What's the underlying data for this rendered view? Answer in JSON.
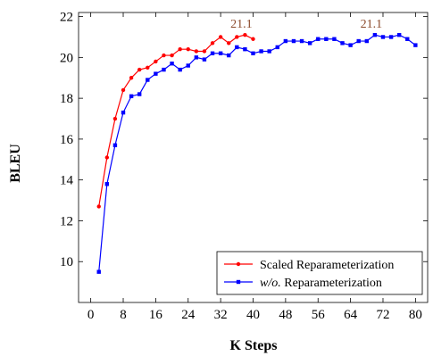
{
  "chart_data": {
    "type": "line",
    "xlabel": "K Steps",
    "ylabel": "BLEU",
    "xlim": [
      -3,
      83
    ],
    "ylim": [
      8,
      22.2
    ],
    "xticks": [
      0,
      8,
      16,
      24,
      32,
      40,
      48,
      56,
      64,
      72,
      80
    ],
    "yticks": [
      10,
      12,
      14,
      16,
      18,
      20,
      22
    ],
    "grid": false,
    "legend_position": "bottom-right",
    "series": [
      {
        "name": "Scaled Reparameterization",
        "color": "#ff0000",
        "marker": "circle",
        "x": [
          2,
          4,
          6,
          8,
          10,
          12,
          14,
          16,
          18,
          20,
          22,
          24,
          26,
          28,
          30,
          32,
          34,
          36,
          38,
          40
        ],
        "y": [
          12.7,
          15.1,
          17.0,
          18.4,
          19.0,
          19.4,
          19.5,
          19.8,
          20.1,
          20.1,
          20.4,
          20.4,
          20.3,
          20.3,
          20.7,
          21.0,
          20.7,
          21.0,
          21.1,
          20.9
        ]
      },
      {
        "name": "w/o. Reparameterization",
        "name_italic": "w/o.",
        "name_rest": " Reparameterization",
        "color": "#0000ff",
        "marker": "square",
        "x": [
          2,
          4,
          6,
          8,
          10,
          12,
          14,
          16,
          18,
          20,
          22,
          24,
          26,
          28,
          30,
          32,
          34,
          36,
          38,
          40,
          42,
          44,
          46,
          48,
          50,
          52,
          54,
          56,
          58,
          60,
          62,
          64,
          66,
          68,
          70,
          72,
          74,
          76,
          78,
          80
        ],
        "y": [
          9.5,
          13.8,
          15.7,
          17.3,
          18.1,
          18.2,
          18.9,
          19.2,
          19.4,
          19.7,
          19.4,
          19.6,
          20.0,
          19.9,
          20.2,
          20.2,
          20.1,
          20.5,
          20.4,
          20.2,
          20.3,
          20.3,
          20.5,
          20.8,
          20.8,
          20.8,
          20.7,
          20.9,
          20.9,
          20.9,
          20.7,
          20.6,
          20.8,
          20.8,
          21.1,
          21.0,
          21.0,
          21.1,
          20.9,
          20.6
        ]
      }
    ],
    "annotations": [
      {
        "text": "21.1",
        "x": 38,
        "y": 21.1,
        "series": 0
      },
      {
        "text": "21.1",
        "x": 70,
        "y": 21.1,
        "series": 1
      }
    ]
  }
}
